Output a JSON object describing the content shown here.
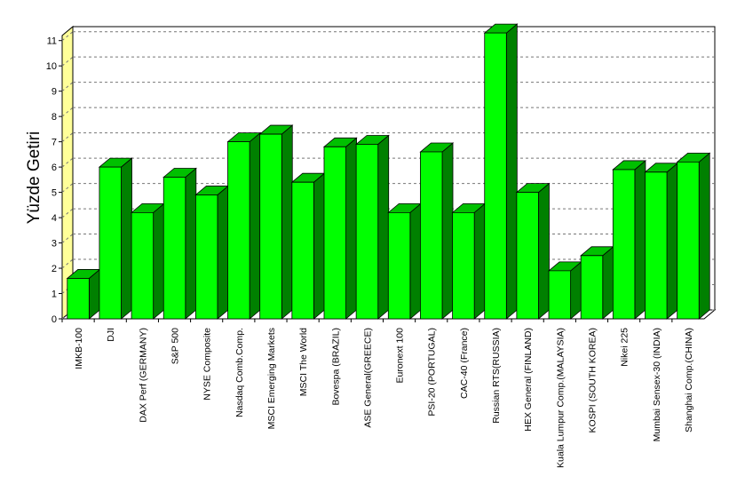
{
  "chart_data": {
    "type": "bar3d",
    "y_label": "Yüzde Getiri",
    "categories": [
      "IMKB-100",
      "DJI",
      "DAX Perf (GERMANY)",
      "S&P 500",
      "NYSE Composite",
      "Nasdaq Comb.Comp.",
      "MSCI Emerging Markets",
      "MSCI The World",
      "Bovespa (BRAZIL)",
      "ASE General(GREECE)",
      "Euronext 100",
      "PSI-20 (PORTUGAL)",
      "CAC-40 (France)",
      "Russian RTS(RUSSIA)",
      "HEX General (FINLAND)",
      "Kuala Lumpur Comp.(MALAYSIA)",
      "KOSPI (SOUTH KOREA)",
      "Nikei 225",
      "Mumbai Sensex-30 (INDIA)",
      "Shanghai Comp.(CHINA)"
    ],
    "values": [
      1.6,
      6.0,
      4.2,
      5.6,
      4.9,
      7.0,
      7.3,
      5.4,
      6.8,
      6.9,
      4.2,
      6.6,
      4.2,
      11.3,
      5.0,
      1.9,
      2.5,
      5.9,
      5.8,
      6.2
    ],
    "color": "#00ff00",
    "ylim": [
      0,
      11.2
    ],
    "yticks": [
      0,
      1,
      2,
      3,
      4,
      5,
      6,
      7,
      8,
      9,
      10,
      11
    ],
    "grid": true
  }
}
